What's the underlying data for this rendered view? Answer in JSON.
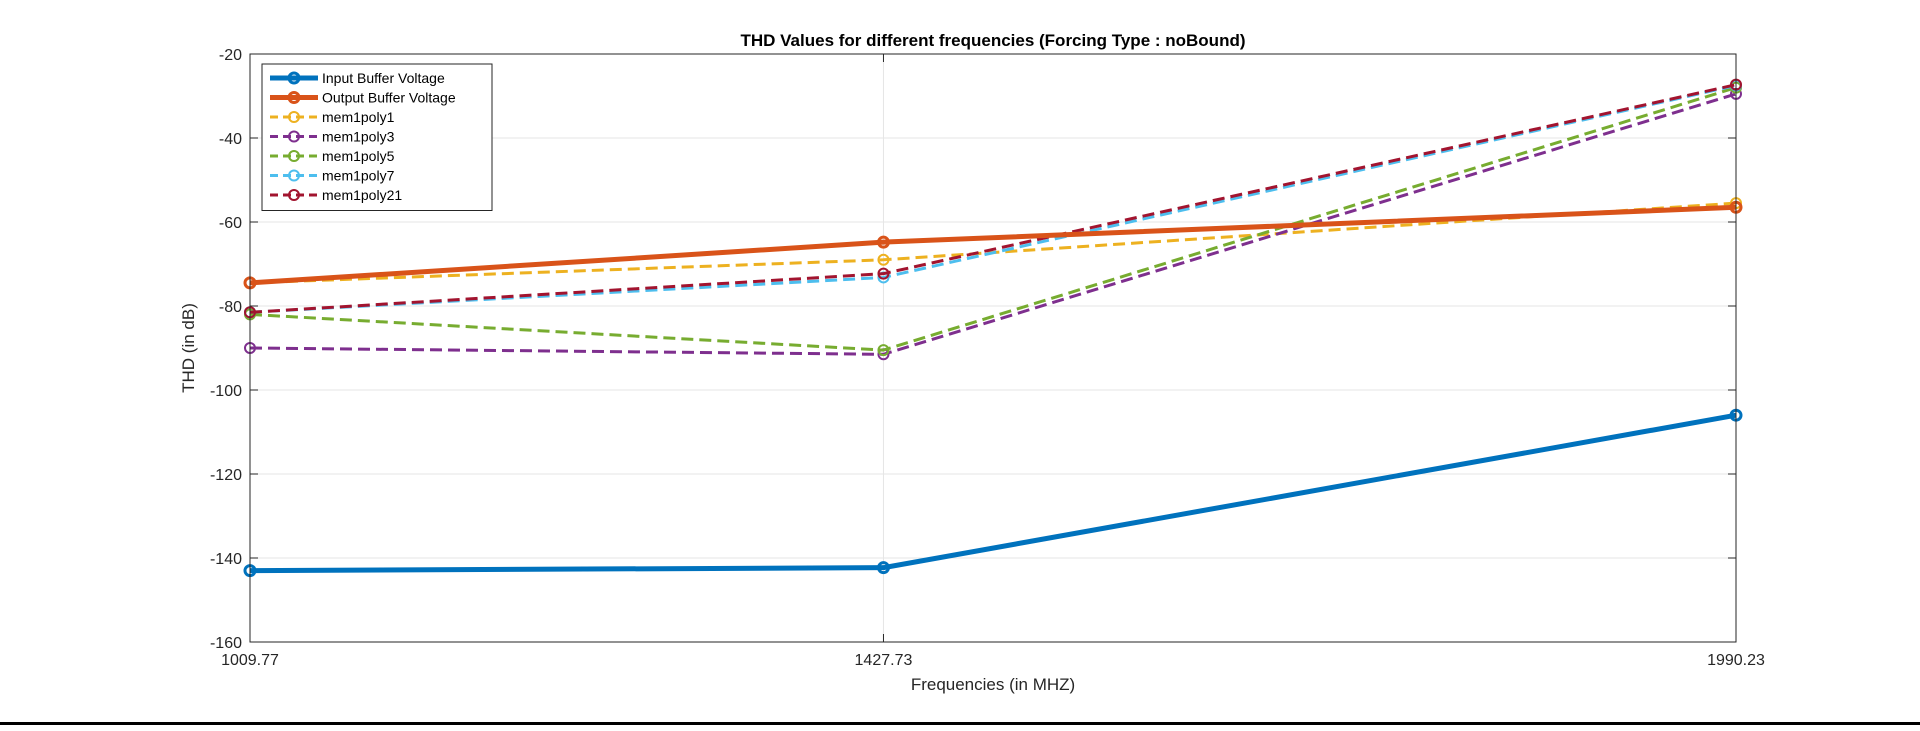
{
  "chart_data": {
    "type": "line",
    "title": "THD Values for different frequencies (Forcing Type : noBound)",
    "xlabel": "Frequencies (in MHZ)",
    "ylabel": "THD (in dB)",
    "categories": [
      "1009.77",
      "1427.73",
      "1990.23"
    ],
    "x": [
      1009.77,
      1427.73,
      1990.23
    ],
    "xlim": [
      1009.77,
      1990.23
    ],
    "ylim": [
      -160,
      -20
    ],
    "yticks": [
      -20,
      -40,
      -60,
      -80,
      -100,
      -120,
      -140,
      -160
    ],
    "grid": true,
    "legend_position": "top-left",
    "series": [
      {
        "name": "Input Buffer Voltage",
        "color": "#0072BD",
        "style": "solid",
        "marker": "filled-circle",
        "values": [
          -143,
          -142.3,
          -106
        ]
      },
      {
        "name": "Output Buffer Voltage",
        "color": "#D95319",
        "style": "solid",
        "marker": "filled-circle",
        "values": [
          -74.5,
          -64.8,
          -56.5
        ]
      },
      {
        "name": "mem1poly1",
        "color": "#EDB120",
        "style": "dashed",
        "marker": "open-circle",
        "values": [
          -74.5,
          -69,
          -55.5
        ]
      },
      {
        "name": "mem1poly3",
        "color": "#7E2F8E",
        "style": "dashed",
        "marker": "open-circle",
        "values": [
          -90,
          -91.5,
          -29.5
        ]
      },
      {
        "name": "mem1poly5",
        "color": "#77AC30",
        "style": "dashed",
        "marker": "open-circle",
        "values": [
          -82,
          -90.5,
          -28
        ]
      },
      {
        "name": "mem1poly7",
        "color": "#4DBEEE",
        "style": "dashed",
        "marker": "open-circle",
        "values": [
          -81.5,
          -73.2,
          -27.5
        ]
      },
      {
        "name": "mem1poly21",
        "color": "#A2142F",
        "style": "dashed",
        "marker": "open-circle",
        "values": [
          -81.5,
          -72.3,
          -27.3
        ]
      }
    ]
  }
}
